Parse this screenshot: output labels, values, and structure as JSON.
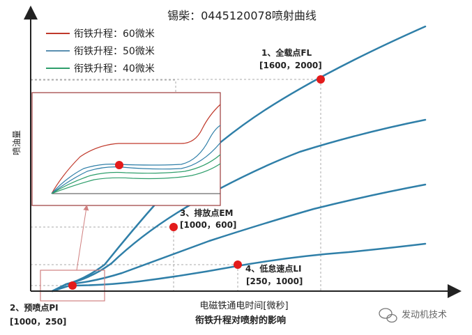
{
  "chart_data": {
    "type": "line",
    "title": "锡柴：0445120078喷射曲线",
    "subtitle": "衔铁升程对喷射的影响",
    "xlabel": "电磁铁通电时间[微秒]",
    "ylabel": "喷油量",
    "legend_position": "top-left",
    "grid": false,
    "series": [
      {
        "name": "衔铁升程：60微米",
        "color": "#c0392b"
      },
      {
        "name": "衔铁升程：50微米",
        "color": "#5a8fb0"
      },
      {
        "name": "衔铁升程：40微米",
        "color": "#2e9e6b"
      }
    ],
    "curve_color": "#2f7fa8",
    "marker_color": "#e31b1b",
    "points": [
      {
        "label": "1、全载点FL",
        "coords": "[1600，2000]"
      },
      {
        "label": "2、预喷点PI",
        "coords": "[1000，250]"
      },
      {
        "label": "3、排放点EM",
        "coords": "[1000，600]"
      },
      {
        "label": "4、低怠速点LI",
        "coords": "[250，1000]"
      }
    ]
  },
  "watermark": "发动机技术"
}
